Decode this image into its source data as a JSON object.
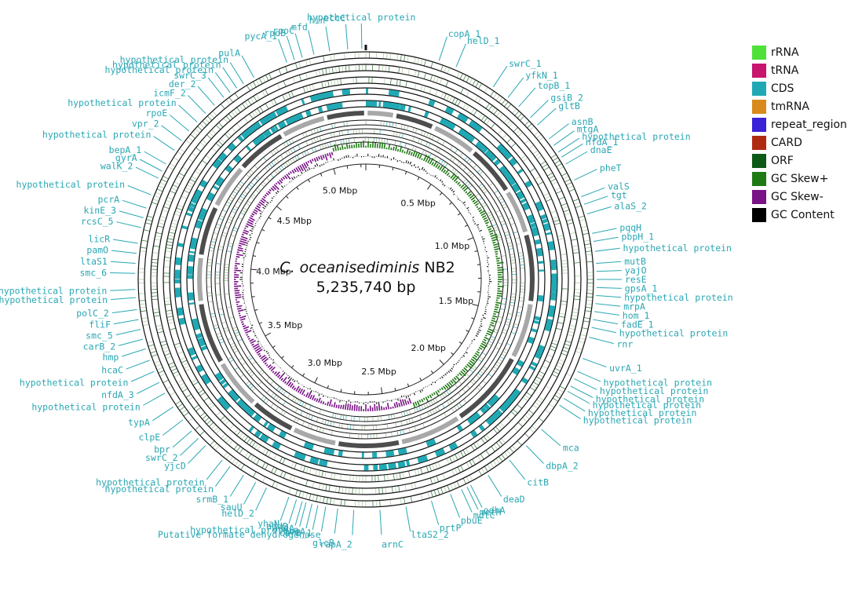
{
  "title": {
    "organism": "C. oceanisediminis",
    "strain": "NB2",
    "size": "5,235,740 bp"
  },
  "genome_length_bp": 5235740,
  "scale_ticks": [
    {
      "label": "0.5 Mbp",
      "mbp": 0.5
    },
    {
      "label": "1.0 Mbp",
      "mbp": 1.0
    },
    {
      "label": "1.5 Mbp",
      "mbp": 1.5
    },
    {
      "label": "2.0 Mbp",
      "mbp": 2.0
    },
    {
      "label": "2.5 Mbp",
      "mbp": 2.5
    },
    {
      "label": "3.0 Mbp",
      "mbp": 3.0
    },
    {
      "label": "3.5 Mbp",
      "mbp": 3.5
    },
    {
      "label": "4.0 Mbp",
      "mbp": 4.0
    },
    {
      "label": "4.5 Mbp",
      "mbp": 4.5
    },
    {
      "label": "5.0 Mbp",
      "mbp": 5.0
    }
  ],
  "legend": [
    {
      "label": "rRNA",
      "color": "#4fe03a"
    },
    {
      "label": "tRNA",
      "color": "#c8156d"
    },
    {
      "label": "CDS",
      "color": "#20a9b4"
    },
    {
      "label": "tmRNA",
      "color": "#d98a1c"
    },
    {
      "label": "repeat_region",
      "color": "#3a22d6"
    },
    {
      "label": "CARD",
      "color": "#b02a12"
    },
    {
      "label": "ORF",
      "color": "#0d5a17"
    },
    {
      "label": "GC Skew+",
      "color": "#1f7a14"
    },
    {
      "label": "GC Skew-",
      "color": "#7a1486"
    },
    {
      "label": "GC Content",
      "color": "#000000"
    }
  ],
  "gene_labels": [
    {
      "text": "hypothetical protein",
      "deg": 359.0
    },
    {
      "text": "eccC",
      "deg": 355.5
    },
    {
      "text": "hin",
      "deg": 351.0
    },
    {
      "text": "mfd",
      "deg": 347.0
    },
    {
      "text": "rpoC",
      "deg": 344.0
    },
    {
      "text": "rpoB",
      "deg": 342.0
    },
    {
      "text": "pycA_1",
      "deg": 340.0
    },
    {
      "text": "pulA",
      "deg": 331.0
    },
    {
      "text": "hypothetical protein",
      "deg": 328.0
    },
    {
      "text": "hypothetical protein",
      "deg": 326.0
    },
    {
      "text": "hypothetical protein",
      "deg": 324.0
    },
    {
      "text": "swrC_3",
      "deg": 322.0
    },
    {
      "text": "der_2",
      "deg": 319.0
    },
    {
      "text": "icmF_2",
      "deg": 316.0
    },
    {
      "text": "hypothetical protein",
      "deg": 313.0
    },
    {
      "text": "rpoE",
      "deg": 310.0
    },
    {
      "text": "vpr_2",
      "deg": 307.0
    },
    {
      "text": "hypothetical protein",
      "deg": 304.0
    },
    {
      "text": "bepA_1",
      "deg": 300.0
    },
    {
      "text": "gyrA",
      "deg": 298.0
    },
    {
      "text": "walK_2",
      "deg": 296.0
    },
    {
      "text": "hypothetical protein",
      "deg": 291.5
    },
    {
      "text": "pcrA",
      "deg": 288.0
    },
    {
      "text": "kinE_3",
      "deg": 285.5
    },
    {
      "text": "rcsC_5",
      "deg": 283.0
    },
    {
      "text": "licR",
      "deg": 279.0
    },
    {
      "text": "pamO",
      "deg": 276.5
    },
    {
      "text": "ltaS1",
      "deg": 274.0
    },
    {
      "text": "smc_6",
      "deg": 271.5
    },
    {
      "text": "hypothetical protein",
      "deg": 267.5
    },
    {
      "text": "hypothetical protein",
      "deg": 265.5
    },
    {
      "text": "polC_2",
      "deg": 262.5
    },
    {
      "text": "fliF",
      "deg": 260.0
    },
    {
      "text": "smc_5",
      "deg": 257.5
    },
    {
      "text": "carB_2",
      "deg": 255.0
    },
    {
      "text": "hmp",
      "deg": 252.5
    },
    {
      "text": "hcaC",
      "deg": 249.5
    },
    {
      "text": "hypothetical protein",
      "deg": 246.5
    },
    {
      "text": "nfdA_3",
      "deg": 243.5
    },
    {
      "text": "hypothetical protein",
      "deg": 240.5
    },
    {
      "text": "typA",
      "deg": 236.5
    },
    {
      "text": "clpE",
      "deg": 232.5
    },
    {
      "text": "bpr",
      "deg": 229.0
    },
    {
      "text": "swrC_2",
      "deg": 226.5
    },
    {
      "text": "yjcD",
      "deg": 224.0
    },
    {
      "text": "hypothetical protein",
      "deg": 218.5
    },
    {
      "text": "hypothetical protein",
      "deg": 216.0
    },
    {
      "text": "srmB_1",
      "deg": 212.0
    },
    {
      "text": "sauU",
      "deg": 208.5
    },
    {
      "text": "helD_2",
      "deg": 205.5
    },
    {
      "text": "addA",
      "deg": 196.0
    },
    {
      "text": "moeA",
      "deg": 193.5
    },
    {
      "text": "addB",
      "deg": 197.5
    },
    {
      "text": "carB_1",
      "deg": 192.0
    },
    {
      "text": "yhaN",
      "deg": 199.5
    },
    {
      "text": "glcB",
      "deg": 187.0
    },
    {
      "text": "Putative formate dehydrogenase",
      "deg": 190.0
    },
    {
      "text": "hypothetical protein",
      "deg": 195.0
    },
    {
      "text": "rapA_2",
      "deg": 183.0
    },
    {
      "text": "arnC",
      "deg": 176.5
    },
    {
      "text": "ltaS2_2",
      "deg": 170.0
    },
    {
      "text": "prtP",
      "deg": 163.5
    },
    {
      "text": "pbuE",
      "deg": 158.5
    },
    {
      "text": "mdtC",
      "deg": 155.5
    },
    {
      "text": "metH",
      "deg": 154.0
    },
    {
      "text": "odhA",
      "deg": 153.0
    },
    {
      "text": "deaD",
      "deg": 148.0
    },
    {
      "text": "citB",
      "deg": 141.5
    },
    {
      "text": "dbpA_2",
      "deg": 136.0
    },
    {
      "text": "mca",
      "deg": 130.5
    },
    {
      "text": "hypothetical protein",
      "deg": 123.0
    },
    {
      "text": "hypothetical protein",
      "deg": 121.0
    },
    {
      "text": "hypothetical protein",
      "deg": 119.0
    },
    {
      "text": "hypothetical protein",
      "deg": 117.5
    },
    {
      "text": "hypothetical protein",
      "deg": 115.5
    },
    {
      "text": "hypothetical protein",
      "deg": 113.5
    },
    {
      "text": "uvrA_1",
      "deg": 110.0
    },
    {
      "text": "rnr",
      "deg": 104.5
    },
    {
      "text": "hypothetical protein",
      "deg": 102.0
    },
    {
      "text": "fadE_1",
      "deg": 100.0
    },
    {
      "text": "hom_1",
      "deg": 98.0
    },
    {
      "text": "mrpA",
      "deg": 96.0
    },
    {
      "text": "hypothetical protein",
      "deg": 94.0
    },
    {
      "text": "gpsA_1",
      "deg": 92.0
    },
    {
      "text": "resE",
      "deg": 90.0
    },
    {
      "text": "yajO",
      "deg": 88.0
    },
    {
      "text": "mutB",
      "deg": 86.0
    },
    {
      "text": "hypothetical protein",
      "deg": 83.0
    },
    {
      "text": "pbpH_1",
      "deg": 80.5
    },
    {
      "text": "pqqH",
      "deg": 78.5
    },
    {
      "text": "alaS_2",
      "deg": 73.5
    },
    {
      "text": "tgt",
      "deg": 71.0
    },
    {
      "text": "valS",
      "deg": 69.0
    },
    {
      "text": "pheT",
      "deg": 64.5
    },
    {
      "text": "dnaE",
      "deg": 60.0
    },
    {
      "text": "nfdA_1",
      "deg": 58.0
    },
    {
      "text": "hypothetical protein",
      "deg": 56.5
    },
    {
      "text": "mtgA",
      "deg": 54.5
    },
    {
      "text": "asnB",
      "deg": 52.5
    },
    {
      "text": "gltB",
      "deg": 48.0
    },
    {
      "text": "gsiB_2",
      "deg": 45.5
    },
    {
      "text": "topB_1",
      "deg": 41.5
    },
    {
      "text": "yfkN_1",
      "deg": 38.0
    },
    {
      "text": "swrC_1",
      "deg": 33.5
    },
    {
      "text": "helD_1",
      "deg": 23.0
    },
    {
      "text": "copA_1",
      "deg": 18.5
    }
  ]
}
